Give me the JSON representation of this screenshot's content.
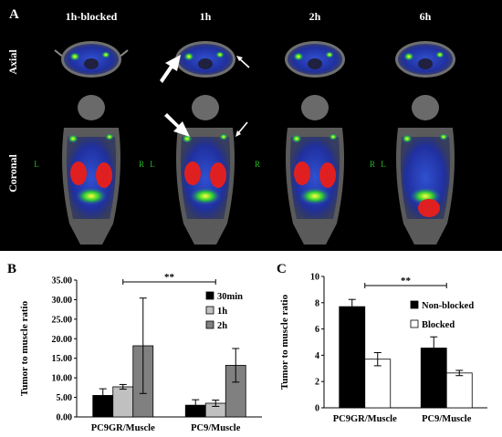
{
  "panel_a": {
    "label": "A",
    "columns": [
      "1h-blocked",
      "1h",
      "2h",
      "6h"
    ],
    "rows": [
      "Axial",
      "Coronal"
    ],
    "side_left": "L",
    "side_right": "R",
    "colors": {
      "background": "#000000",
      "header_text": "#ffffff",
      "side_text": "#22bb22",
      "hot": "#e02020"
    }
  },
  "chart_data": [
    {
      "type": "bar",
      "panel_label": "B",
      "categories": [
        "PC9GR/Muscle",
        "PC9/Muscle"
      ],
      "ylabel": "Tumor to muscle ratio",
      "ylim": [
        0,
        35
      ],
      "yticks": [
        "0.00",
        "5.00",
        "10.00",
        "15.00",
        "20.00",
        "25.00",
        "30.00",
        "35.00"
      ],
      "series": [
        {
          "name": "30min",
          "values": [
            5.5,
            3.0
          ],
          "errors": [
            1.7,
            1.4
          ],
          "color": "#000000"
        },
        {
          "name": "1h",
          "values": [
            7.7,
            3.5
          ],
          "errors": [
            0.6,
            0.8
          ],
          "color": "#c0c0c0"
        },
        {
          "name": "2h",
          "values": [
            18.2,
            13.2
          ],
          "errors": [
            12.2,
            4.3
          ],
          "color": "#808080"
        }
      ],
      "significance": "**",
      "legend": "right"
    },
    {
      "type": "bar",
      "panel_label": "C",
      "categories": [
        "PC9GR/Muscle",
        "PC9/Muscle"
      ],
      "ylabel": "Tumor to muscle ratio",
      "ylim": [
        0,
        10
      ],
      "yticks": [
        "0",
        "2",
        "4",
        "6",
        "8",
        "10"
      ],
      "series": [
        {
          "name": "Non-blocked",
          "values": [
            7.7,
            4.55
          ],
          "errors": [
            0.55,
            0.85
          ],
          "color": "#000000"
        },
        {
          "name": "Blocked",
          "values": [
            3.7,
            2.65
          ],
          "errors": [
            0.5,
            0.2
          ],
          "color": "#ffffff"
        }
      ],
      "significance": "**",
      "legend": "right"
    }
  ]
}
